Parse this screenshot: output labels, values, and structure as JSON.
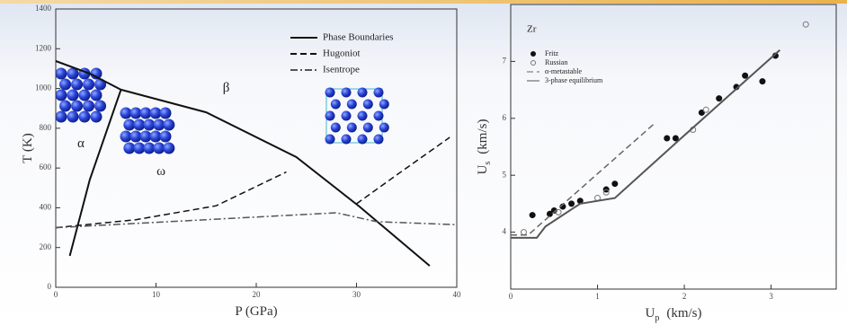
{
  "chart_data": [
    {
      "type": "line",
      "x_label": "P  (GPa)",
      "y_label": "T  (K)",
      "xlim": [
        0,
        40
      ],
      "ylim": [
        0,
        1400
      ],
      "xticks": [
        0,
        10,
        20,
        30,
        40
      ],
      "yticks": [
        0,
        200,
        400,
        600,
        800,
        1000,
        1200,
        1400
      ],
      "legend": "upper right",
      "annotations": [
        {
          "text": "α",
          "x": 2.5,
          "y": 720
        },
        {
          "text": "ω",
          "x": 10.5,
          "y": 580
        },
        {
          "text": "β",
          "x": 17,
          "y": 1000
        }
      ],
      "series": [
        {
          "name": "Phase Boundaries",
          "style": "solid",
          "color": "#111111",
          "x": [
            0,
            3.4,
            6.5,
            null,
            6.5,
            15,
            24,
            30.3,
            37.3,
            null,
            1.4,
            3.4,
            6.5
          ],
          "values": [
            1138,
            1075,
            994,
            null,
            994,
            880,
            655,
            406,
            108,
            null,
            158,
            542,
            994
          ]
        },
        {
          "name": "Hugoniot",
          "style": "dashed",
          "color": "#111111",
          "x": [
            0,
            8,
            16,
            23,
            null,
            30,
            34,
            39.3
          ],
          "values": [
            300,
            340,
            410,
            580,
            null,
            420,
            565,
            754
          ]
        },
        {
          "name": "Isentrope",
          "style": "dashdot",
          "color": "#555555",
          "x": [
            0,
            15,
            28,
            32,
            40
          ],
          "values": [
            300,
            340,
            375,
            330,
            315
          ]
        }
      ]
    },
    {
      "type": "scatter",
      "title": "Zr",
      "x_label": "U",
      "x_label_sub": "p",
      "x_label_unit": "(km/s)",
      "y_label": "U",
      "y_label_sub": "s",
      "y_label_unit": "(km/s)",
      "xlim": [
        0,
        3.75
      ],
      "ylim": [
        3,
        8
      ],
      "xticks": [
        0,
        1,
        2,
        3
      ],
      "yticks": [
        4,
        5,
        6,
        7
      ],
      "legend": "upper left",
      "series": [
        {
          "name": "Fritz",
          "style": "marker-filled",
          "color": "#111111",
          "x": [
            0.25,
            0.45,
            0.5,
            0.6,
            0.7,
            0.8,
            1.1,
            1.2,
            1.8,
            1.9,
            2.2,
            2.4,
            2.6,
            2.7,
            2.9,
            3.05
          ],
          "values": [
            4.3,
            4.32,
            4.38,
            4.45,
            4.5,
            4.55,
            4.75,
            4.85,
            5.65,
            5.65,
            6.1,
            6.35,
            6.55,
            6.75,
            6.65,
            7.1
          ]
        },
        {
          "name": "Russian",
          "style": "marker-open",
          "color": "#777777",
          "x": [
            0.15,
            0.55,
            1.0,
            1.1,
            2.1,
            2.25,
            3.4
          ],
          "values": [
            4.0,
            4.35,
            4.6,
            4.7,
            5.8,
            6.15,
            7.65
          ]
        },
        {
          "name": "α-metastable",
          "style": "dashed",
          "color": "#666666",
          "x": [
            0,
            0.2,
            1.65
          ],
          "values": [
            3.95,
            3.95,
            5.9
          ]
        },
        {
          "name": "3-phase equilibrium",
          "style": "solid",
          "color": "#555555",
          "x": [
            0,
            0.3,
            0.4,
            0.8,
            1.2,
            2.0,
            3.1
          ],
          "values": [
            3.9,
            3.9,
            4.1,
            4.5,
            4.6,
            5.7,
            7.2
          ]
        }
      ]
    }
  ]
}
